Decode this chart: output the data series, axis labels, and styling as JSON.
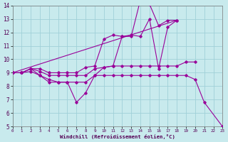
{
  "xlabel": "Windchill (Refroidissement éolien,°C)",
  "xlim": [
    0,
    23
  ],
  "ylim": [
    5,
    14
  ],
  "xticks": [
    0,
    1,
    2,
    3,
    4,
    5,
    6,
    7,
    8,
    9,
    10,
    11,
    12,
    13,
    14,
    15,
    16,
    17,
    18,
    19,
    20,
    21,
    22,
    23
  ],
  "yticks": [
    5,
    6,
    7,
    8,
    9,
    10,
    11,
    12,
    13,
    14
  ],
  "background_color": "#c8eaed",
  "grid_color": "#a0d0d8",
  "line_color": "#990099",
  "line1_x": [
    0,
    1,
    2,
    3,
    4,
    5,
    6,
    7,
    8,
    9,
    10,
    11,
    12,
    13,
    14,
    15,
    16,
    17,
    18
  ],
  "line1_y": [
    9.0,
    9.0,
    9.3,
    9.3,
    9.0,
    9.0,
    9.0,
    9.0,
    9.4,
    9.5,
    11.5,
    11.8,
    11.7,
    11.7,
    14.4,
    14.1,
    12.5,
    12.9,
    12.9
  ],
  "line2_x": [
    0,
    1,
    2,
    3,
    4,
    5,
    6,
    7,
    8,
    9,
    10,
    11,
    12,
    13,
    14,
    15,
    16,
    17,
    18,
    19,
    20
  ],
  "line2_y": [
    9.0,
    9.0,
    9.3,
    9.1,
    8.8,
    8.8,
    8.8,
    8.8,
    8.8,
    9.3,
    9.4,
    9.5,
    9.5,
    9.5,
    9.5,
    9.5,
    9.5,
    9.5,
    9.5,
    9.8,
    9.8
  ],
  "line3_x": [
    0,
    1,
    2,
    3,
    4,
    5,
    6,
    7,
    8,
    9,
    10,
    11,
    12,
    13,
    14,
    15,
    16,
    17,
    18
  ],
  "line3_y": [
    9.0,
    9.0,
    9.3,
    8.8,
    8.5,
    8.3,
    8.3,
    6.8,
    7.5,
    8.8,
    9.4,
    9.5,
    11.7,
    11.8,
    11.7,
    13.0,
    9.3,
    12.4,
    12.9
  ],
  "line4_x": [
    0,
    1,
    2,
    3,
    4,
    5,
    6,
    7,
    8,
    9,
    10,
    11,
    12,
    13,
    14,
    15,
    16,
    17,
    18,
    19,
    20,
    21,
    23
  ],
  "line4_y": [
    9.0,
    9.0,
    9.1,
    8.8,
    8.3,
    8.3,
    8.3,
    8.3,
    8.3,
    8.8,
    8.8,
    8.8,
    8.8,
    8.8,
    8.8,
    8.8,
    8.8,
    8.8,
    8.8,
    8.8,
    8.5,
    6.8,
    5.0
  ]
}
